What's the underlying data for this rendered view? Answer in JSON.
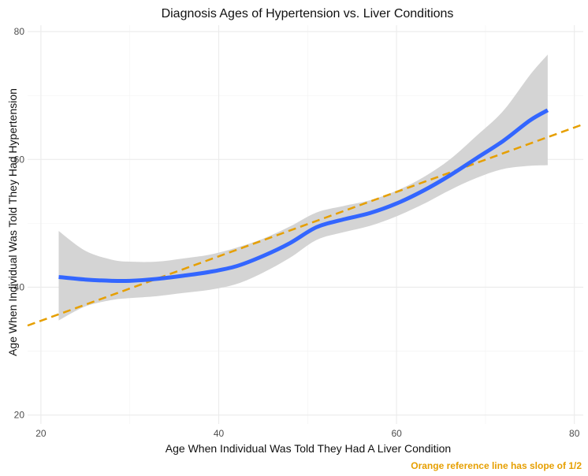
{
  "chart_data": {
    "type": "line",
    "title": "Diagnosis Ages of Hypertension vs. Liver Conditions",
    "xlabel": "Age When Individual Was Told They Had A Liver Condition",
    "ylabel": "Age When Individual Was Told They Had Hypertension",
    "caption": "Orange reference line has slope of 1/2",
    "xlim": [
      18.5,
      81
    ],
    "ylim": [
      18.6,
      81
    ],
    "x_ticks": [
      20,
      40,
      60,
      80
    ],
    "y_ticks": [
      20,
      40,
      60,
      80
    ],
    "grid": true,
    "smooth": {
      "color": "#3366ff",
      "x": [
        22,
        25,
        28,
        30,
        33,
        36,
        39,
        42,
        45,
        48,
        51,
        54,
        57,
        60,
        63,
        66,
        69,
        72,
        75,
        77
      ],
      "y": [
        41.6,
        41.2,
        41.0,
        41.0,
        41.3,
        41.8,
        42.4,
        43.3,
        44.9,
        46.9,
        49.4,
        50.6,
        51.6,
        53.1,
        55.1,
        57.5,
        60.2,
        62.9,
        66.1,
        67.7
      ],
      "ymin": [
        34.8,
        37.0,
        38.0,
        38.3,
        38.6,
        39.1,
        39.6,
        40.5,
        42.3,
        44.6,
        47.4,
        48.6,
        49.6,
        51.1,
        53.0,
        55.2,
        57.1,
        58.5,
        59.0,
        59.1
      ],
      "ymax": [
        48.8,
        45.7,
        44.3,
        44.0,
        44.0,
        44.5,
        45.1,
        46.2,
        47.6,
        49.5,
        51.7,
        52.7,
        53.6,
        55.1,
        57.2,
        60.0,
        63.7,
        67.6,
        73.2,
        76.4
      ]
    },
    "reference_line": {
      "color": "#e69f00",
      "slope": 0.5,
      "points": [
        [
          18.5,
          34.0
        ],
        [
          81,
          65.5
        ]
      ]
    }
  }
}
